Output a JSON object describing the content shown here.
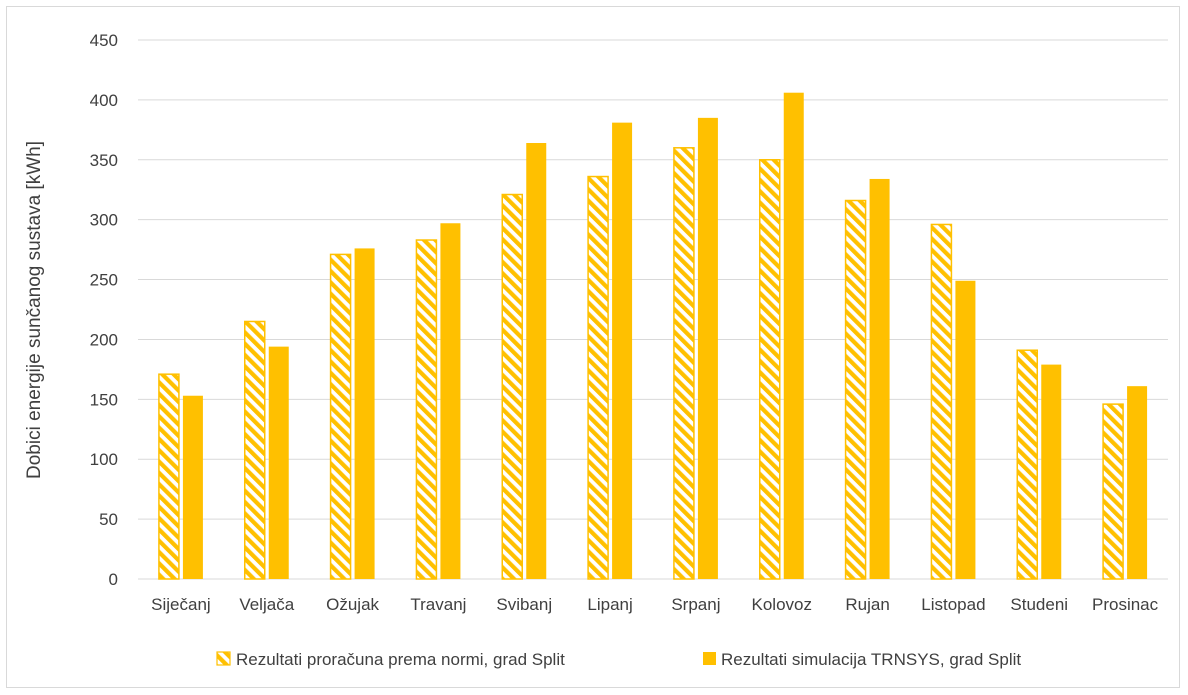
{
  "chart_data": {
    "type": "bar",
    "title": "",
    "xlabel": "",
    "ylabel": "Dobici energije sunčanog sustava [kWh]",
    "ylim": [
      0,
      450
    ],
    "yticks": [
      0,
      50,
      100,
      150,
      200,
      250,
      300,
      350,
      400,
      450
    ],
    "grid": true,
    "legend_position": "bottom",
    "categories": [
      "Siječanj",
      "Veljača",
      "Ožujak",
      "Travanj",
      "Svibanj",
      "Lipanj",
      "Srpanj",
      "Kolovoz",
      "Rujan",
      "Listopad",
      "Studeni",
      "Prosinac"
    ],
    "series": [
      {
        "name": "Rezultati proračuna prema normi, grad Split",
        "color": "#FFC000",
        "pattern": "diagonal-hatch",
        "values": [
          171,
          215,
          271,
          283,
          321,
          336,
          360,
          350,
          316,
          296,
          191,
          146
        ]
      },
      {
        "name": "Rezultati simulacija TRNSYS, grad Split",
        "color": "#FFC000",
        "pattern": "solid",
        "values": [
          153,
          194,
          276,
          297,
          364,
          381,
          385,
          406,
          334,
          249,
          179,
          161
        ]
      }
    ]
  }
}
